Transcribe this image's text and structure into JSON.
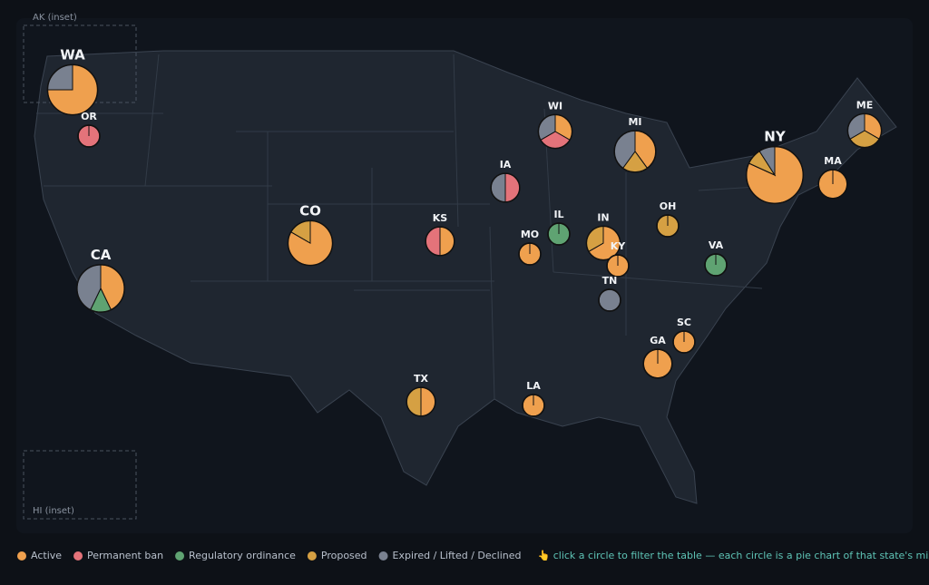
{
  "map": {
    "insets": [
      "AK (inset)",
      "HI (inset)"
    ],
    "legend": [
      {
        "label": "Active",
        "color": "#efa04e"
      },
      {
        "label": "Permanent ban",
        "color": "#e4737a"
      },
      {
        "label": "Regulatory ordinance",
        "color": "#5fa372"
      },
      {
        "label": "Proposed",
        "color": "#d5a043"
      },
      {
        "label": "Expired / Lifted / Declined",
        "color": "#798190"
      }
    ],
    "hint": "👆 click a circle to filter the table — each circle is a pie chart of that state's mix",
    "states": [
      {
        "code": "WA",
        "counts": [
          6,
          0,
          0,
          0,
          2
        ]
      },
      {
        "code": "OR",
        "counts": [
          0,
          1,
          0,
          0,
          0
        ]
      },
      {
        "code": "CA",
        "counts": [
          3,
          0,
          1,
          0,
          3
        ]
      },
      {
        "code": "CO",
        "counts": [
          5,
          0,
          0,
          1,
          0
        ]
      },
      {
        "code": "KS",
        "counts": [
          1,
          1,
          0,
          0,
          0
        ]
      },
      {
        "code": "TX",
        "counts": [
          1,
          0,
          0,
          1,
          0
        ]
      },
      {
        "code": "LA",
        "counts": [
          1,
          0,
          0,
          0,
          0
        ]
      },
      {
        "code": "IA",
        "counts": [
          0,
          1,
          0,
          0,
          1
        ]
      },
      {
        "code": "MO",
        "counts": [
          1,
          0,
          0,
          0,
          0
        ]
      },
      {
        "code": "IL",
        "counts": [
          0,
          0,
          1,
          0,
          0
        ]
      },
      {
        "code": "IN",
        "counts": [
          2,
          0,
          0,
          1,
          0
        ]
      },
      {
        "code": "KY",
        "counts": [
          1,
          0,
          0,
          0,
          0
        ]
      },
      {
        "code": "TN",
        "counts": [
          0,
          0,
          0,
          0,
          1
        ]
      },
      {
        "code": "OH",
        "counts": [
          0,
          0,
          0,
          1,
          0
        ]
      },
      {
        "code": "VA",
        "counts": [
          0,
          0,
          1,
          0,
          0
        ]
      },
      {
        "code": "GA",
        "counts": [
          2,
          0,
          0,
          0,
          0
        ]
      },
      {
        "code": "SC",
        "counts": [
          1,
          0,
          0,
          0,
          0
        ]
      },
      {
        "code": "WI",
        "counts": [
          1,
          1,
          0,
          0,
          1
        ]
      },
      {
        "code": "MI",
        "counts": [
          2,
          0,
          0,
          1,
          2
        ]
      },
      {
        "code": "ME",
        "counts": [
          1,
          0,
          0,
          1,
          1
        ]
      },
      {
        "code": "NY",
        "counts": [
          9,
          0,
          0,
          1,
          1
        ]
      },
      {
        "code": "MA",
        "counts": [
          2,
          0,
          0,
          0,
          0
        ]
      }
    ]
  }
}
